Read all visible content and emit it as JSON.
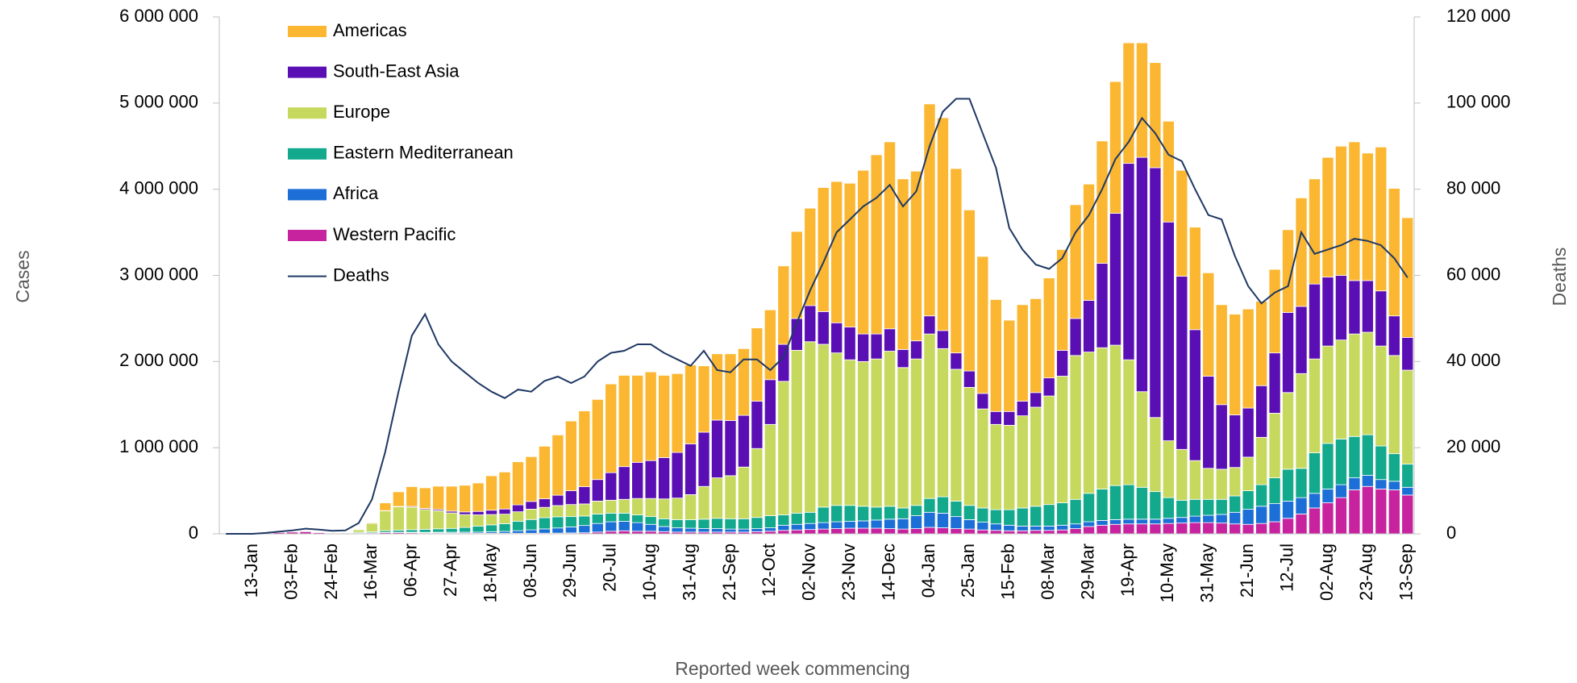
{
  "chart_data": {
    "type": "bar",
    "stacked": true,
    "y_label": "Cases",
    "y2_label": "Deaths",
    "x_label": "Reported week commencing",
    "categories": [
      null,
      null,
      "13-Jan",
      null,
      null,
      "03-Feb",
      null,
      null,
      "24-Feb",
      null,
      null,
      "16-Mar",
      null,
      null,
      "06-Apr",
      null,
      null,
      "27-Apr",
      null,
      null,
      "18-May",
      null,
      null,
      "08-Jun",
      null,
      null,
      "29-Jun",
      null,
      null,
      "20-Jul",
      null,
      null,
      "10-Aug",
      null,
      null,
      "31-Aug",
      null,
      null,
      "21-Sep",
      null,
      null,
      "12-Oct",
      null,
      null,
      "02-Nov",
      null,
      null,
      "23-Nov",
      null,
      null,
      "14-Dec",
      null,
      null,
      "04-Jan",
      null,
      null,
      "25-Jan",
      null,
      null,
      "15-Feb",
      null,
      null,
      "08-Mar",
      null,
      null,
      "29-Mar",
      null,
      null,
      "19-Apr",
      null,
      null,
      "10-May",
      null,
      null,
      "31-May",
      null,
      null,
      "21-Jun",
      null,
      null,
      "12-Jul",
      null,
      null,
      "02-Aug",
      null,
      null,
      "23-Aug",
      null,
      null,
      "13-Sep"
    ],
    "ylim": [
      0,
      6000000
    ],
    "yticks": [
      0,
      {
        "value": 1000000,
        "label": "1 000 000"
      },
      {
        "value": 2000000,
        "label": "2 000 000"
      },
      {
        "value": 3000000,
        "label": "3 000 000"
      },
      {
        "value": 4000000,
        "label": "4 000 000"
      },
      {
        "value": 5000000,
        "label": "5 000 000"
      },
      {
        "value": 6000000,
        "label": "6 000 000"
      }
    ],
    "y2lim": [
      0,
      120000
    ],
    "y2ticks": [
      0,
      {
        "value": 20000,
        "label": "20 000"
      },
      {
        "value": 40000,
        "label": "40 000"
      },
      {
        "value": 60000,
        "label": "60 000"
      },
      {
        "value": 80000,
        "label": "80 000"
      },
      {
        "value": 100000,
        "label": "100 000"
      },
      {
        "value": 120000,
        "label": "120 000"
      }
    ],
    "legend": "upper left",
    "series": [
      {
        "name": "Americas",
        "color": "#fbb731",
        "values": [
          0,
          0,
          0,
          0,
          0,
          0,
          0,
          0,
          0,
          1000,
          2000,
          10000,
          90000,
          170000,
          230000,
          240000,
          270000,
          290000,
          310000,
          330000,
          400000,
          430000,
          500000,
          520000,
          610000,
          700000,
          810000,
          880000,
          930000,
          1030000,
          1060000,
          1010000,
          1030000,
          955000,
          915000,
          915000,
          770000,
          770000,
          775000,
          775000,
          850000,
          810000,
          910000,
          1010000,
          1130000,
          1440000,
          1640000,
          1670000,
          1900000,
          2080000,
          2170000,
          1980000,
          1970000,
          2460000,
          2470000,
          2140000,
          1870000,
          1590000,
          1300000,
          1060000,
          1120000,
          1090000,
          1160000,
          1170000,
          1320000,
          1350000,
          1420000,
          1530000,
          1400000,
          1330000,
          1220000,
          1170000,
          1230000,
          1190000,
          1200000,
          1160000,
          1170000,
          1150000,
          980000,
          970000,
          960000,
          1260000,
          1220000,
          1390000,
          1500000,
          1610000,
          1480000,
          1670000,
          1480000,
          1390000
        ]
      },
      {
        "name": "South-East Asia",
        "color": "#5a0fb4",
        "values": [
          0,
          0,
          0,
          0,
          0,
          0,
          0,
          0,
          0,
          0,
          0,
          1000,
          3000,
          5000,
          10000,
          12000,
          15000,
          20000,
          30000,
          40000,
          50000,
          60000,
          80000,
          90000,
          100000,
          120000,
          160000,
          200000,
          250000,
          320000,
          380000,
          420000,
          440000,
          480000,
          530000,
          590000,
          630000,
          670000,
          640000,
          600000,
          550000,
          520000,
          430000,
          370000,
          420000,
          380000,
          350000,
          380000,
          320000,
          290000,
          260000,
          210000,
          210000,
          210000,
          210000,
          190000,
          190000,
          180000,
          150000,
          160000,
          170000,
          170000,
          210000,
          300000,
          430000,
          600000,
          980000,
          1530000,
          2280000,
          2720000,
          2900000,
          2540000,
          2010000,
          1520000,
          1070000,
          750000,
          610000,
          570000,
          600000,
          700000,
          930000,
          780000,
          870000,
          800000,
          750000,
          620000,
          600000,
          640000,
          460000,
          380000
        ]
      },
      {
        "name": "Europe",
        "color": "#c6d95e",
        "values": [
          0,
          0,
          0,
          0,
          0,
          0,
          0,
          1000,
          1000,
          8000,
          30000,
          100000,
          230000,
          270000,
          260000,
          230000,
          210000,
          180000,
          150000,
          130000,
          120000,
          110000,
          110000,
          120000,
          120000,
          130000,
          140000,
          140000,
          150000,
          150000,
          160000,
          190000,
          210000,
          230000,
          250000,
          290000,
          380000,
          470000,
          500000,
          600000,
          800000,
          1060000,
          1550000,
          1890000,
          1980000,
          1890000,
          1770000,
          1690000,
          1680000,
          1720000,
          1800000,
          1630000,
          1700000,
          1910000,
          1720000,
          1530000,
          1370000,
          1150000,
          990000,
          980000,
          1070000,
          1150000,
          1260000,
          1470000,
          1670000,
          1640000,
          1640000,
          1630000,
          1450000,
          1110000,
          860000,
          660000,
          590000,
          450000,
          360000,
          350000,
          330000,
          390000,
          550000,
          750000,
          890000,
          1100000,
          1090000,
          1130000,
          1150000,
          1190000,
          1190000,
          1160000,
          1140000,
          1090000
        ]
      },
      {
        "name": "Eastern Mediterranean",
        "color": "#12a98d",
        "values": [
          0,
          0,
          0,
          0,
          0,
          0,
          0,
          0,
          2000,
          8000,
          10000,
          12000,
          20000,
          25000,
          30000,
          35000,
          40000,
          45000,
          55000,
          70000,
          80000,
          90000,
          110000,
          120000,
          130000,
          130000,
          120000,
          110000,
          110000,
          100000,
          95000,
          90000,
          90000,
          90000,
          95000,
          100000,
          110000,
          120000,
          120000,
          120000,
          130000,
          140000,
          120000,
          130000,
          130000,
          180000,
          190000,
          185000,
          170000,
          150000,
          150000,
          125000,
          120000,
          160000,
          190000,
          180000,
          165000,
          165000,
          165000,
          180000,
          210000,
          230000,
          250000,
          260000,
          285000,
          330000,
          365000,
          395000,
          400000,
          370000,
          320000,
          240000,
          200000,
          195000,
          185000,
          175000,
          190000,
          215000,
          250000,
          300000,
          370000,
          340000,
          470000,
          530000,
          530000,
          480000,
          470000,
          390000,
          320000,
          270000
        ]
      },
      {
        "name": "Africa",
        "color": "#1b6fd6",
        "values": [
          0,
          0,
          0,
          0,
          0,
          0,
          0,
          0,
          0,
          0,
          0,
          0,
          1000,
          3000,
          6000,
          7000,
          8000,
          10000,
          12000,
          14000,
          18000,
          22000,
          30000,
          40000,
          50000,
          60000,
          70000,
          85000,
          100000,
          110000,
          110000,
          100000,
          80000,
          60000,
          50000,
          45000,
          40000,
          40000,
          35000,
          35000,
          35000,
          40000,
          60000,
          65000,
          70000,
          75000,
          80000,
          80000,
          85000,
          95000,
          110000,
          120000,
          150000,
          175000,
          170000,
          140000,
          110000,
          90000,
          75000,
          65000,
          55000,
          50000,
          50000,
          55000,
          55000,
          55000,
          55000,
          55000,
          55000,
          55000,
          55000,
          60000,
          65000,
          75000,
          85000,
          100000,
          135000,
          175000,
          200000,
          210000,
          200000,
          190000,
          170000,
          160000,
          150000,
          140000,
          130000,
          110000,
          100000,
          90000
        ]
      },
      {
        "name": "Western Pacific",
        "color": "#c8239f",
        "values": [
          0,
          0,
          1000,
          3000,
          15000,
          20000,
          25000,
          15000,
          8000,
          8000,
          8000,
          10000,
          15000,
          15000,
          12000,
          10000,
          10000,
          8000,
          7000,
          6000,
          6000,
          6000,
          6000,
          6000,
          7000,
          8000,
          10000,
          12000,
          20000,
          30000,
          35000,
          30000,
          30000,
          25000,
          20000,
          20000,
          20000,
          20000,
          20000,
          20000,
          25000,
          30000,
          40000,
          45000,
          50000,
          55000,
          60000,
          65000,
          65000,
          65000,
          60000,
          55000,
          60000,
          75000,
          70000,
          60000,
          55000,
          45000,
          40000,
          35000,
          35000,
          40000,
          40000,
          45000,
          60000,
          85000,
          100000,
          110000,
          115000,
          115000,
          115000,
          120000,
          125000,
          130000,
          130000,
          125000,
          115000,
          110000,
          120000,
          140000,
          180000,
          230000,
          300000,
          360000,
          420000,
          510000,
          550000,
          520000,
          510000,
          450000
        ]
      },
      {
        "name": "Deaths",
        "type": "line",
        "axis": "y2",
        "color": "#1f3864",
        "values": [
          0,
          0,
          0,
          200,
          500,
          800,
          1200,
          1000,
          700,
          800,
          2500,
          8000,
          19000,
          33000,
          46000,
          51000,
          44000,
          40000,
          37500,
          35000,
          33000,
          31500,
          33500,
          33000,
          35500,
          36500,
          35000,
          36500,
          40000,
          42000,
          42500,
          44000,
          44000,
          42000,
          40500,
          39000,
          42500,
          38000,
          37500,
          40500,
          40500,
          38000,
          41000,
          49000,
          56500,
          63000,
          70000,
          73000,
          76000,
          78000,
          81000,
          76000,
          79500,
          90000,
          98000,
          101000,
          101000,
          93000,
          85000,
          71000,
          66000,
          62500,
          61500,
          64000,
          70000,
          74000,
          80000,
          87000,
          91000,
          96500,
          93000,
          88000,
          86500,
          80000,
          74000,
          73000,
          64500,
          57500,
          53500,
          56000,
          57500,
          70000,
          65000,
          66000,
          67000,
          68500,
          68000,
          67000,
          64000,
          59500
        ]
      }
    ]
  }
}
